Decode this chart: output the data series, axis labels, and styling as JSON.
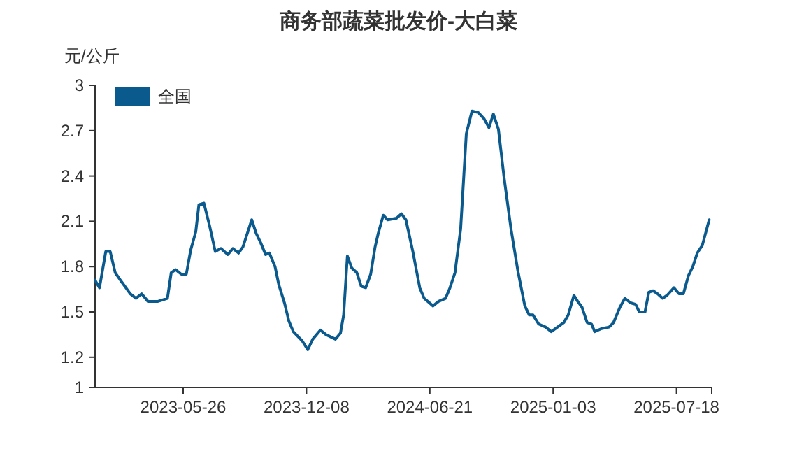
{
  "chart_data": {
    "type": "line",
    "title": "商务部蔬菜批发价-大白菜",
    "ylabel": "元/公斤",
    "x": [
      "2023-01-06",
      "2023-01-13",
      "2023-01-23",
      "2023-01-30",
      "2023-02-07",
      "2023-02-17",
      "2023-03-03",
      "2023-03-12",
      "2023-03-21",
      "2023-03-31",
      "2023-04-16",
      "2023-05-01",
      "2023-05-07",
      "2023-05-14",
      "2023-05-23",
      "2023-05-31",
      "2023-06-07",
      "2023-06-15",
      "2023-06-20",
      "2023-06-28",
      "2023-07-07",
      "2023-07-16",
      "2023-07-25",
      "2023-08-05",
      "2023-08-13",
      "2023-08-22",
      "2023-08-29",
      "2023-09-12",
      "2023-09-19",
      "2023-09-26",
      "2023-10-04",
      "2023-10-10",
      "2023-10-19",
      "2023-10-25",
      "2023-11-03",
      "2023-11-10",
      "2023-11-17",
      "2023-12-01",
      "2023-12-10",
      "2023-12-18",
      "2023-12-30",
      "2024-01-08",
      "2024-01-23",
      "2024-01-31",
      "2024-02-05",
      "2024-02-11",
      "2024-02-18",
      "2024-02-26",
      "2024-03-04",
      "2024-03-11",
      "2024-03-19",
      "2024-03-26",
      "2024-03-31",
      "2024-04-08",
      "2024-04-15",
      "2024-04-29",
      "2024-05-07",
      "2024-05-14",
      "2024-05-25",
      "2024-06-05",
      "2024-06-12",
      "2024-06-26",
      "2024-07-05",
      "2024-07-16",
      "2024-07-23",
      "2024-07-31",
      "2024-08-09",
      "2024-08-18",
      "2024-08-27",
      "2024-09-06",
      "2024-09-15",
      "2024-09-23",
      "2024-09-30",
      "2024-10-08",
      "2024-10-17",
      "2024-10-28",
      "2024-11-08",
      "2024-11-19",
      "2024-11-26",
      "2024-12-02",
      "2024-12-11",
      "2024-12-22",
      "2024-12-31",
      "2025-01-10",
      "2025-01-20",
      "2025-01-27",
      "2025-02-05",
      "2025-02-11",
      "2025-02-18",
      "2025-02-26",
      "2025-03-05",
      "2025-03-10",
      "2025-03-21",
      "2025-04-02",
      "2025-04-09",
      "2025-04-19",
      "2025-04-27",
      "2025-05-06",
      "2025-05-14",
      "2025-05-20",
      "2025-05-29",
      "2025-06-04",
      "2025-06-11",
      "2025-06-18",
      "2025-06-26",
      "2025-07-03",
      "2025-07-14",
      "2025-07-22",
      "2025-07-29",
      "2025-08-06",
      "2025-08-13",
      "2025-08-20",
      "2025-08-28",
      "2025-09-08"
    ],
    "series": [
      {
        "name": "全国",
        "color": "#0b5a8e",
        "values": [
          1.71,
          1.66,
          1.9,
          1.9,
          1.76,
          1.7,
          1.62,
          1.59,
          1.62,
          1.57,
          1.57,
          1.59,
          1.76,
          1.78,
          1.75,
          1.75,
          1.91,
          2.03,
          2.21,
          2.22,
          2.07,
          1.9,
          1.92,
          1.88,
          1.92,
          1.89,
          1.93,
          2.11,
          2.02,
          1.96,
          1.88,
          1.89,
          1.8,
          1.68,
          1.56,
          1.44,
          1.37,
          1.31,
          1.25,
          1.32,
          1.38,
          1.35,
          1.32,
          1.36,
          1.48,
          1.87,
          1.79,
          1.76,
          1.67,
          1.66,
          1.75,
          1.93,
          2.02,
          2.14,
          2.11,
          2.12,
          2.15,
          2.11,
          1.9,
          1.66,
          1.59,
          1.54,
          1.57,
          1.59,
          1.66,
          1.76,
          2.05,
          2.68,
          2.83,
          2.82,
          2.78,
          2.72,
          2.81,
          2.71,
          2.39,
          2.05,
          1.77,
          1.54,
          1.48,
          1.48,
          1.42,
          1.4,
          1.37,
          1.4,
          1.43,
          1.48,
          1.61,
          1.57,
          1.53,
          1.43,
          1.42,
          1.37,
          1.39,
          1.4,
          1.43,
          1.53,
          1.59,
          1.56,
          1.55,
          1.5,
          1.5,
          1.63,
          1.64,
          1.62,
          1.59,
          1.61,
          1.66,
          1.62,
          1.62,
          1.74,
          1.8,
          1.89,
          1.94,
          2.11
        ]
      }
    ],
    "xlim": [
      "2023-01-06",
      "2025-09-12"
    ],
    "xticks": [
      "2023-05-26",
      "2023-12-08",
      "2024-06-21",
      "2025-01-03",
      "2025-07-18"
    ],
    "ylim": [
      1,
      3
    ],
    "yticks": [
      1,
      1.2,
      1.5,
      1.8,
      2.1,
      2.4,
      2.7,
      3
    ],
    "legend": "top left"
  }
}
